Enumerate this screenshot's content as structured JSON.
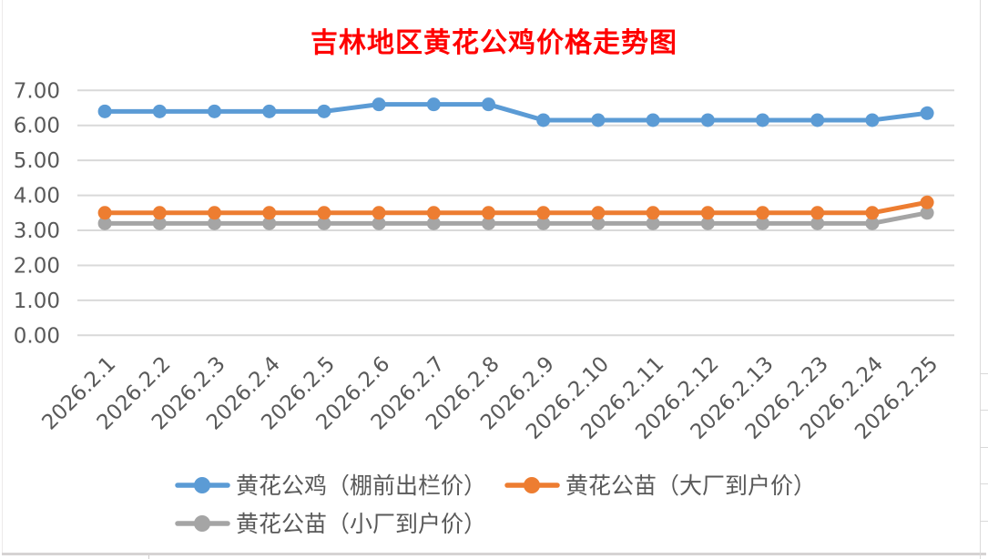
{
  "colors": {
    "title": "#FF0000",
    "axis_text": "#595959",
    "gridline": "#D9D9D9",
    "background": "#FFFFFF",
    "sheet_edge": "#D9D9D9",
    "series_blue": "#5B9BD5",
    "series_orange": "#ED7D31",
    "series_gray": "#A5A5A5"
  },
  "chart_data": {
    "type": "line",
    "title": "吉林地区黄花公鸡价格走势图",
    "xlabel": "",
    "ylabel": "",
    "ylim": [
      0,
      7
    ],
    "ytick_step": 1,
    "ytick_labels": [
      "0.00",
      "1.00",
      "2.00",
      "3.00",
      "4.00",
      "5.00",
      "6.00",
      "7.00"
    ],
    "grid": true,
    "legend_position": "bottom",
    "categories": [
      "2026.2.1",
      "2026.2.2",
      "2026.2.3",
      "2026.2.4",
      "2026.2.5",
      "2026.2.6",
      "2026.2.7",
      "2026.2.8",
      "2026.2.9",
      "2026.2.10",
      "2026.2.11",
      "2026.2.12",
      "2026.2.13",
      "2026.2.23",
      "2026.2.24",
      "2026.2.25"
    ],
    "series": [
      {
        "name": "黄花公鸡（棚前出栏价）",
        "color": "#5B9BD5",
        "values": [
          6.4,
          6.4,
          6.4,
          6.4,
          6.4,
          6.6,
          6.6,
          6.6,
          6.15,
          6.15,
          6.15,
          6.15,
          6.15,
          6.15,
          6.15,
          6.35
        ]
      },
      {
        "name": "黄花公苗（大厂到户价）",
        "color": "#ED7D31",
        "values": [
          3.5,
          3.5,
          3.5,
          3.5,
          3.5,
          3.5,
          3.5,
          3.5,
          3.5,
          3.5,
          3.5,
          3.5,
          3.5,
          3.5,
          3.5,
          3.8
        ]
      },
      {
        "name": "黄花公苗（小厂到户价）",
        "color": "#A5A5A5",
        "values": [
          3.2,
          3.2,
          3.2,
          3.2,
          3.2,
          3.2,
          3.2,
          3.2,
          3.2,
          3.2,
          3.2,
          3.2,
          3.2,
          3.2,
          3.2,
          3.5
        ]
      }
    ]
  }
}
